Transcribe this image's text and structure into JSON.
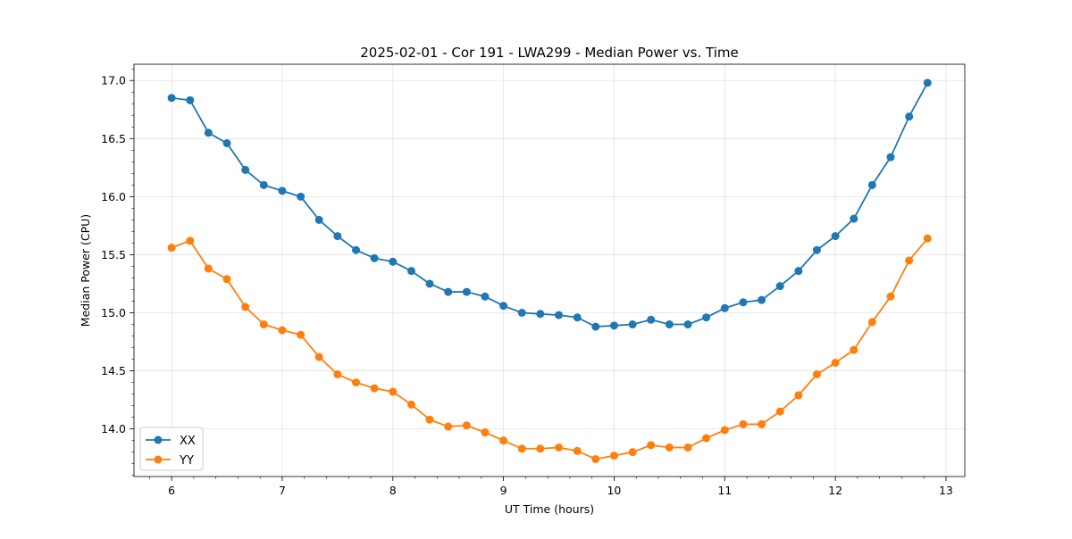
{
  "chart_data": {
    "type": "line",
    "title": "2025-02-01 - Cor 191 - LWA299 - Median Power vs. Time",
    "xlabel": "UT Time (hours)",
    "ylabel": "Median Power (CPU)",
    "xlim": [
      5.66,
      13.17
    ],
    "ylim": [
      13.59,
      17.14
    ],
    "grid": true,
    "legend_position": "lower-left",
    "x_ticks": [
      6,
      7,
      8,
      9,
      10,
      11,
      12,
      13
    ],
    "x_tick_labels": [
      "6",
      "7",
      "8",
      "9",
      "10",
      "11",
      "12",
      "13"
    ],
    "y_ticks": [
      14.0,
      14.5,
      15.0,
      15.5,
      16.0,
      16.5,
      17.0
    ],
    "y_tick_labels": [
      "14.0",
      "14.5",
      "15.0",
      "15.5",
      "16.0",
      "16.5",
      "17.0"
    ],
    "x": [
      6.0,
      6.167,
      6.333,
      6.5,
      6.667,
      6.833,
      7.0,
      7.167,
      7.333,
      7.5,
      7.667,
      7.833,
      8.0,
      8.167,
      8.333,
      8.5,
      8.667,
      8.833,
      9.0,
      9.167,
      9.333,
      9.5,
      9.667,
      9.833,
      10.0,
      10.167,
      10.333,
      10.5,
      10.667,
      10.833,
      11.0,
      11.167,
      11.333,
      11.5,
      11.667,
      11.833,
      12.0,
      12.167,
      12.333,
      12.5,
      12.667,
      12.833
    ],
    "series": [
      {
        "name": "XX",
        "color": "#1f77b4",
        "values": [
          16.85,
          16.83,
          16.55,
          16.46,
          16.23,
          16.1,
          16.05,
          16.0,
          15.8,
          15.66,
          15.54,
          15.47,
          15.44,
          15.36,
          15.25,
          15.18,
          15.18,
          15.14,
          15.06,
          15.0,
          14.99,
          14.98,
          14.96,
          14.88,
          14.89,
          14.9,
          14.94,
          14.9,
          14.9,
          14.96,
          15.04,
          15.09,
          15.11,
          15.23,
          15.36,
          15.54,
          15.66,
          15.81,
          16.1,
          16.34,
          16.69,
          16.98
        ]
      },
      {
        "name": "YY",
        "color": "#ff7f0e",
        "values": [
          15.56,
          15.62,
          15.38,
          15.29,
          15.05,
          14.9,
          14.85,
          14.81,
          14.62,
          14.47,
          14.4,
          14.35,
          14.32,
          14.21,
          14.08,
          14.02,
          14.03,
          13.97,
          13.9,
          13.83,
          13.83,
          13.84,
          13.81,
          13.74,
          13.77,
          13.8,
          13.86,
          13.84,
          13.84,
          13.92,
          13.99,
          14.04,
          14.04,
          14.15,
          14.29,
          14.47,
          14.57,
          14.68,
          14.92,
          15.14,
          15.45,
          15.64
        ]
      }
    ]
  }
}
